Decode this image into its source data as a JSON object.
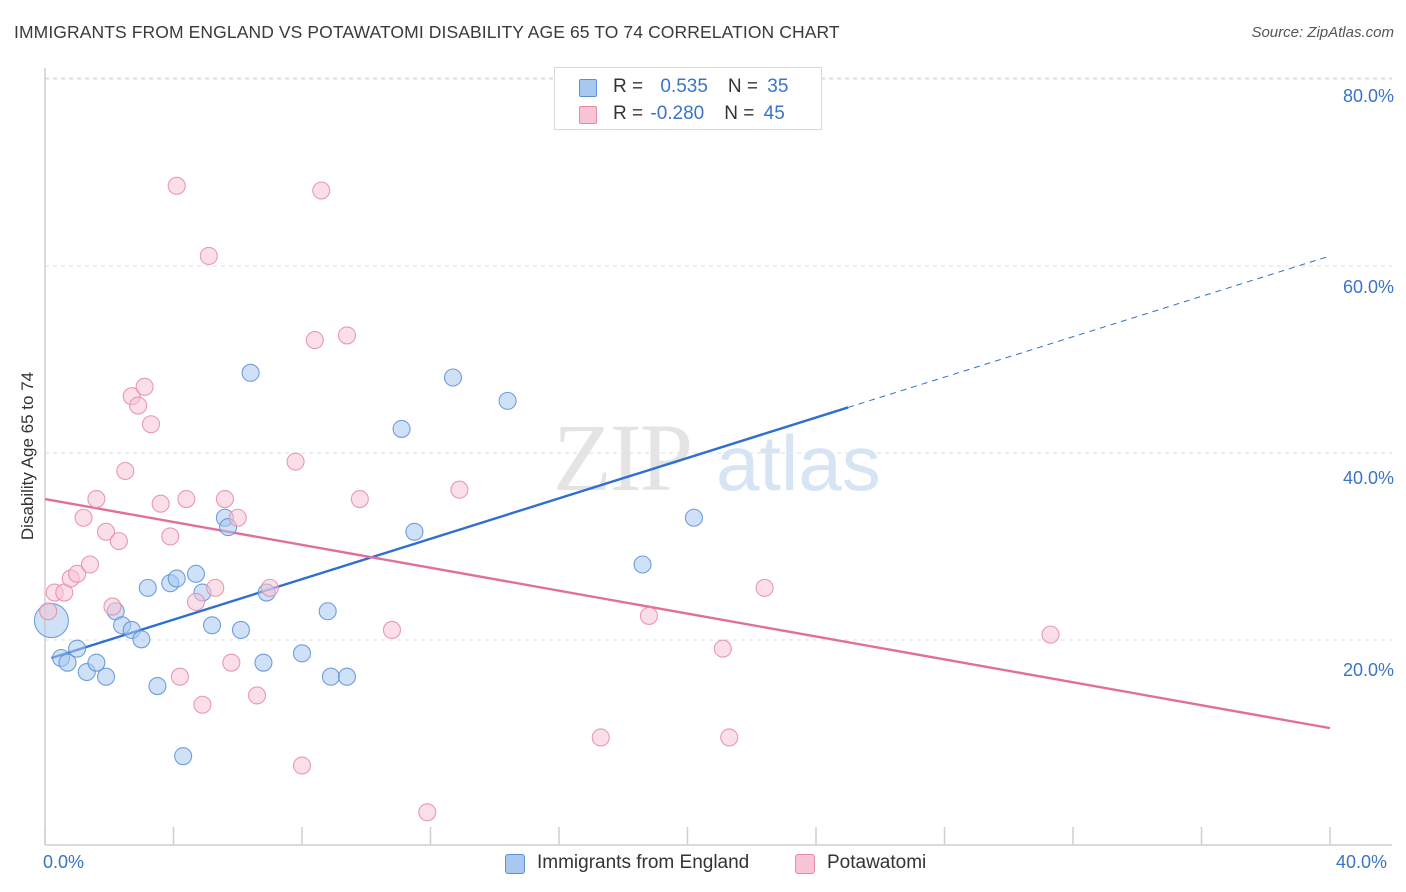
{
  "title": "IMMIGRANTS FROM ENGLAND VS POTAWATOMI DISABILITY AGE 65 TO 74 CORRELATION CHART",
  "source": "Source: ZipAtlas.com",
  "watermark": {
    "zip": "ZIP",
    "atlas": "atlas"
  },
  "legend": {
    "rows": [
      {
        "r_label": "R = ",
        "r_value": "0.535",
        "n_label": "N = ",
        "n_value": "35",
        "color": "#a8c8f0",
        "border": "#5b8fd6"
      },
      {
        "r_label": "R = ",
        "r_value": "-0.280",
        "n_label": "N = ",
        "n_value": "45",
        "color": "#f7c5d5",
        "border": "#e58aa6"
      }
    ]
  },
  "bottom_legend": [
    {
      "label": "Immigrants from England",
      "color": "#a8c8f0",
      "border": "#5b8fd6"
    },
    {
      "label": "Potawatomi",
      "color": "#f7c5d5",
      "border": "#e58aa6"
    }
  ],
  "axes": {
    "ylabel": "Disability Age 65 to 74",
    "y_ticks": [
      "80.0%",
      "60.0%",
      "40.0%",
      "20.0%"
    ],
    "x_ticks": [
      "0.0%",
      "40.0%"
    ]
  },
  "chart_data": {
    "type": "scatter",
    "title": "IMMIGRANTS FROM ENGLAND VS POTAWATOMI DISABILITY AGE 65 TO 74 CORRELATION CHART",
    "xlabel": "",
    "ylabel": "Disability Age 65 to 74",
    "xlim": [
      0,
      40
    ],
    "ylim": [
      0,
      80
    ],
    "y_grid": [
      20,
      40,
      60,
      80
    ],
    "grid": true,
    "series": [
      {
        "name": "Immigrants from England",
        "color": "#5b8fd6",
        "fill": "#a8c8f0",
        "points": [
          [
            0.2,
            24.0
          ],
          [
            0.5,
            20.0
          ],
          [
            0.7,
            19.5
          ],
          [
            1.0,
            21.0
          ],
          [
            1.3,
            18.5
          ],
          [
            1.6,
            19.5
          ],
          [
            1.9,
            18.0
          ],
          [
            2.2,
            25.0
          ],
          [
            2.4,
            23.5
          ],
          [
            2.7,
            23.0
          ],
          [
            3.0,
            22.0
          ],
          [
            3.2,
            27.5
          ],
          [
            3.5,
            17.0
          ],
          [
            3.9,
            28.0
          ],
          [
            4.1,
            28.5
          ],
          [
            4.3,
            9.5
          ],
          [
            4.7,
            29.0
          ],
          [
            4.9,
            27.0
          ],
          [
            5.2,
            23.5
          ],
          [
            5.6,
            35.0
          ],
          [
            5.7,
            34.0
          ],
          [
            6.1,
            23.0
          ],
          [
            6.4,
            50.5
          ],
          [
            6.8,
            19.5
          ],
          [
            6.9,
            27.0
          ],
          [
            8.0,
            20.5
          ],
          [
            8.8,
            25.0
          ],
          [
            8.9,
            18.0
          ],
          [
            9.4,
            18.0
          ],
          [
            11.1,
            44.5
          ],
          [
            11.5,
            33.5
          ],
          [
            12.7,
            50.0
          ],
          [
            14.4,
            47.5
          ],
          [
            18.6,
            30.0
          ],
          [
            20.2,
            35.0
          ]
        ],
        "trend": {
          "x": [
            0.2,
            25.0
          ],
          "y": [
            20.0,
            46.8
          ],
          "dashed_to": [
            40.0,
            63.0
          ]
        }
      },
      {
        "name": "Potawatomi",
        "color": "#e58aa6",
        "fill": "#f7c5d5",
        "points": [
          [
            0.1,
            25.0
          ],
          [
            0.3,
            27.0
          ],
          [
            0.6,
            27.0
          ],
          [
            0.8,
            28.5
          ],
          [
            1.0,
            29.0
          ],
          [
            1.2,
            35.0
          ],
          [
            1.4,
            30.0
          ],
          [
            1.6,
            37.0
          ],
          [
            1.9,
            33.5
          ],
          [
            2.1,
            25.5
          ],
          [
            2.3,
            32.5
          ],
          [
            2.5,
            40.0
          ],
          [
            2.7,
            48.0
          ],
          [
            2.9,
            47.0
          ],
          [
            3.1,
            49.0
          ],
          [
            3.3,
            45.0
          ],
          [
            3.6,
            36.5
          ],
          [
            3.9,
            33.0
          ],
          [
            4.1,
            70.5
          ],
          [
            4.2,
            18.0
          ],
          [
            4.4,
            37.0
          ],
          [
            4.7,
            26.0
          ],
          [
            4.9,
            15.0
          ],
          [
            5.1,
            63.0
          ],
          [
            5.3,
            27.5
          ],
          [
            5.6,
            37.0
          ],
          [
            5.8,
            19.5
          ],
          [
            6.0,
            35.0
          ],
          [
            6.6,
            16.0
          ],
          [
            7.0,
            27.5
          ],
          [
            7.8,
            41.0
          ],
          [
            8.0,
            8.5
          ],
          [
            8.4,
            54.0
          ],
          [
            8.6,
            70.0
          ],
          [
            9.4,
            54.5
          ],
          [
            9.8,
            37.0
          ],
          [
            10.8,
            23.0
          ],
          [
            11.9,
            3.5
          ],
          [
            12.9,
            38.0
          ],
          [
            17.3,
            11.5
          ],
          [
            18.8,
            24.5
          ],
          [
            21.1,
            21.0
          ],
          [
            21.3,
            11.5
          ],
          [
            22.4,
            27.5
          ],
          [
            31.3,
            22.5
          ]
        ],
        "trend": {
          "x": [
            0.0,
            40.0
          ],
          "y": [
            37.0,
            12.5
          ]
        }
      }
    ]
  }
}
